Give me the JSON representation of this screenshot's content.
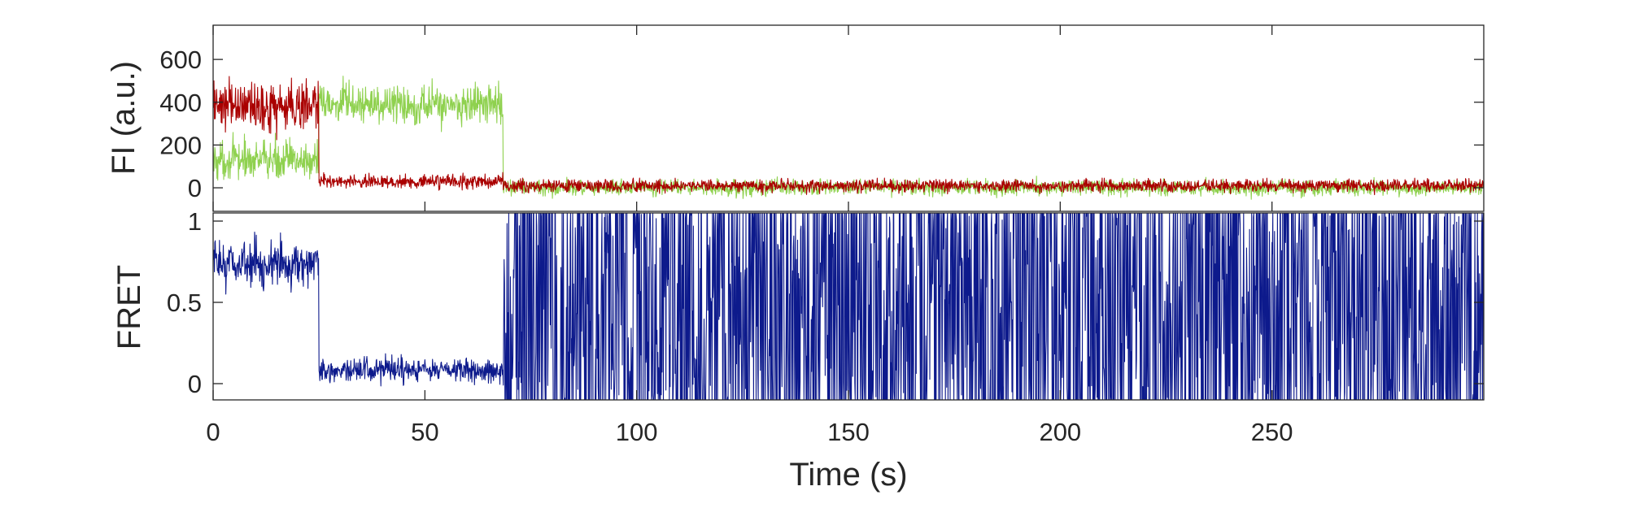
{
  "chart_data": [
    {
      "panel": "intensity",
      "type": "line",
      "ylabel": "FI (a.u.)",
      "ylim": [
        -110,
        760
      ],
      "yticks": [
        0,
        200,
        400,
        600
      ],
      "ytick_labels": [
        "0",
        "200",
        "400",
        "600"
      ],
      "xlim": [
        0,
        300
      ],
      "grid": false,
      "series": [
        {
          "color": "#8fd14f",
          "segments": [
            {
              "t_start": 0,
              "t_end": 25,
              "mean": 130,
              "noise": 140
            },
            {
              "t_start": 25,
              "t_end": 68.5,
              "mean": 390,
              "noise": 150
            },
            {
              "t_start": 68.5,
              "t_end": 300,
              "mean": 0,
              "noise": 55
            }
          ]
        },
        {
          "color": "#aa0000",
          "segments": [
            {
              "t_start": 0,
              "t_end": 25,
              "mean": 380,
              "noise": 190
            },
            {
              "t_start": 25,
              "t_end": 68.5,
              "mean": 30,
              "noise": 50
            },
            {
              "t_start": 68.5,
              "t_end": 300,
              "mean": 10,
              "noise": 45
            }
          ]
        }
      ]
    },
    {
      "panel": "fret",
      "type": "line",
      "ylabel": "FRET",
      "xlabel": "Time (s)",
      "ylim": [
        -0.1,
        1.05
      ],
      "yticks": [
        0,
        0.5,
        1
      ],
      "ytick_labels": [
        "0",
        "0.5",
        "1"
      ],
      "xlim": [
        0,
        300
      ],
      "xticks": [
        0,
        50,
        100,
        150,
        200,
        250
      ],
      "xtick_labels": [
        "0",
        "50",
        "100",
        "150",
        "200",
        "250"
      ],
      "grid": false,
      "series": [
        {
          "color": "#0d1a8c",
          "segments": [
            {
              "t_start": 0,
              "t_end": 25,
              "mean": 0.74,
              "noise": 0.22
            },
            {
              "t_start": 25,
              "t_end": 68.5,
              "mean": 0.08,
              "noise": 0.12
            },
            {
              "t_start": 68.5,
              "t_end": 300,
              "mean": 0.5,
              "noise": 1.0
            }
          ]
        }
      ]
    }
  ]
}
